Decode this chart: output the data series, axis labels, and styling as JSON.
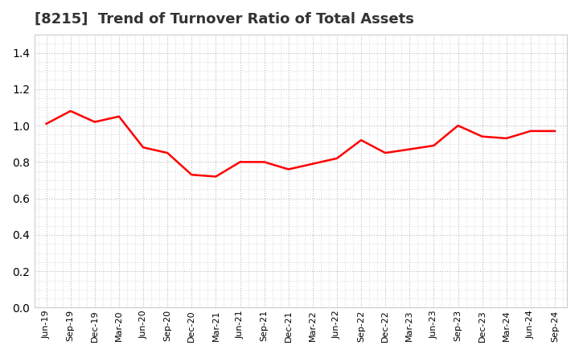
{
  "title": "[8215]  Trend of Turnover Ratio of Total Assets",
  "title_fontsize": 13,
  "title_color": "#333333",
  "line_color": "#FF0000",
  "line_width": 1.8,
  "background_color": "#FFFFFF",
  "plot_bg_color": "#FFFFFF",
  "grid_color": "#BBBBBB",
  "ylim": [
    0.0,
    1.5
  ],
  "yticks": [
    0.0,
    0.2,
    0.4,
    0.6,
    0.8,
    1.0,
    1.2,
    1.4
  ],
  "labels": [
    "Jun-19",
    "Sep-19",
    "Dec-19",
    "Mar-20",
    "Jun-20",
    "Sep-20",
    "Dec-20",
    "Mar-21",
    "Jun-21",
    "Sep-21",
    "Dec-21",
    "Mar-22",
    "Jun-22",
    "Sep-22",
    "Dec-22",
    "Mar-23",
    "Jun-23",
    "Sep-23",
    "Dec-23",
    "Mar-24",
    "Jun-24",
    "Sep-24"
  ],
  "values": [
    1.01,
    1.08,
    1.02,
    1.05,
    0.88,
    0.85,
    0.73,
    0.72,
    0.8,
    0.8,
    0.76,
    0.79,
    0.82,
    0.92,
    0.85,
    0.87,
    0.89,
    1.0,
    0.94,
    0.93,
    0.97,
    0.97
  ]
}
